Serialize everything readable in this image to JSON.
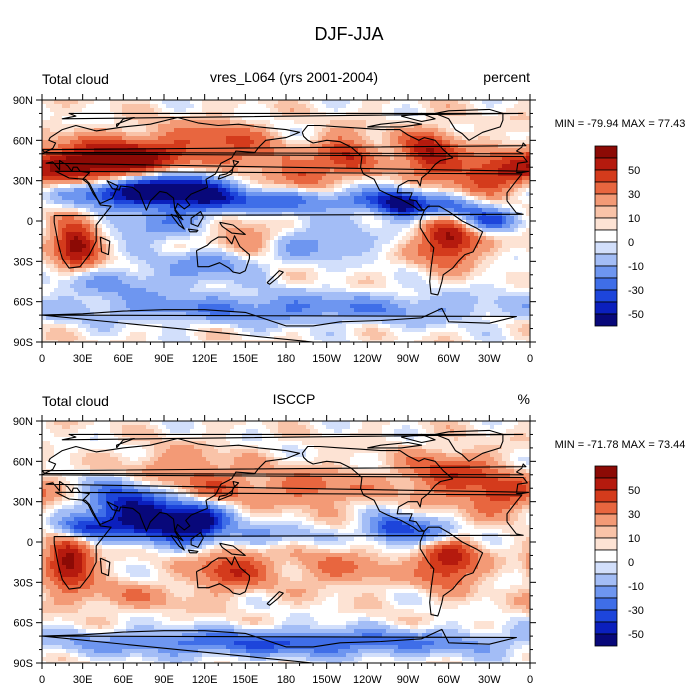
{
  "figure_title": "DJF-JJA",
  "colorbar_labels": [
    "50",
    "30",
    "10",
    "0",
    "-10",
    "-30",
    "-50"
  ],
  "palette": [
    "#08087a",
    "#0b1fbd",
    "#1d45db",
    "#3f6ee8",
    "#6e96f0",
    "#a3bdf6",
    "#d2dffb",
    "#ffffff",
    "#fde3d4",
    "#f9c3a8",
    "#f39a76",
    "#e8663f",
    "#d43b1c",
    "#b51a0e",
    "#8c0a05"
  ],
  "chart_data": [
    {
      "type": "heatmap",
      "panel": "top",
      "title_left": "Total cloud",
      "title_center": "vres_L064 (yrs 2001-2004)",
      "title_right": "percent",
      "stats_text": "MIN = -79.94 MAX =  77.43",
      "min": -79.94,
      "max": 77.43,
      "x_ticks": [
        "0",
        "30E",
        "60E",
        "90E",
        "120E",
        "150E",
        "180",
        "150W",
        "120W",
        "90W",
        "60W",
        "30W",
        "0"
      ],
      "y_ticks": [
        "90N",
        "60N",
        "30N",
        "0",
        "30S",
        "60S",
        "90S"
      ],
      "xlim": [
        0,
        360
      ],
      "ylim": [
        -90,
        90
      ],
      "contour_levels": [
        -60,
        -50,
        -40,
        -30,
        -20,
        -10,
        -5,
        0,
        5,
        10,
        20,
        30,
        40,
        50,
        60
      ],
      "anomalies": [
        {
          "lon": 30,
          "lat": 42,
          "value": 55,
          "sx": 28,
          "sy": 12
        },
        {
          "lon": 75,
          "lat": 45,
          "value": 45,
          "sx": 25,
          "sy": 12
        },
        {
          "lon": 130,
          "lat": 60,
          "value": 30,
          "sx": 25,
          "sy": 10
        },
        {
          "lon": 55,
          "lat": 22,
          "value": -55,
          "sx": 30,
          "sy": 8
        },
        {
          "lon": 90,
          "lat": 25,
          "value": -50,
          "sx": 25,
          "sy": 9
        },
        {
          "lon": 118,
          "lat": 18,
          "value": -40,
          "sx": 20,
          "sy": 10
        },
        {
          "lon": 170,
          "lat": 15,
          "value": -35,
          "sx": 30,
          "sy": 6
        },
        {
          "lon": 240,
          "lat": 15,
          "value": -30,
          "sx": 25,
          "sy": 6
        },
        {
          "lon": 265,
          "lat": 12,
          "value": -55,
          "sx": 12,
          "sy": 7
        },
        {
          "lon": 25,
          "lat": -17,
          "value": 60,
          "sx": 12,
          "sy": 12
        },
        {
          "lon": 300,
          "lat": -15,
          "value": 55,
          "sx": 15,
          "sy": 12
        },
        {
          "lon": 150,
          "lat": -15,
          "value": 30,
          "sx": 20,
          "sy": 10
        },
        {
          "lon": 195,
          "lat": 33,
          "value": 30,
          "sx": 15,
          "sy": 7
        },
        {
          "lon": 225,
          "lat": 50,
          "value": 40,
          "sx": 15,
          "sy": 10
        },
        {
          "lon": 285,
          "lat": 50,
          "value": 50,
          "sx": 15,
          "sy": 12
        },
        {
          "lon": 330,
          "lat": 35,
          "value": 40,
          "sx": 20,
          "sy": 10
        },
        {
          "lon": 80,
          "lat": -5,
          "value": -25,
          "sx": 25,
          "sy": 8
        },
        {
          "lon": 130,
          "lat": -30,
          "value": -30,
          "sx": 25,
          "sy": 8
        },
        {
          "lon": 200,
          "lat": -15,
          "value": -25,
          "sx": 30,
          "sy": 10
        },
        {
          "lon": 300,
          "lat": 10,
          "value": -35,
          "sx": 18,
          "sy": 6
        },
        {
          "lon": 180,
          "lat": -65,
          "value": -30,
          "sx": 120,
          "sy": 8
        },
        {
          "lon": 60,
          "lat": -45,
          "value": -20,
          "sx": 40,
          "sy": 8
        },
        {
          "lon": 330,
          "lat": 0,
          "value": -40,
          "sx": 15,
          "sy": 6
        },
        {
          "lon": 160,
          "lat": 45,
          "value": 20,
          "sx": 20,
          "sy": 8
        }
      ]
    },
    {
      "type": "heatmap",
      "panel": "bottom",
      "title_left": "Total cloud",
      "title_center": "ISCCP",
      "title_right": "%",
      "stats_text": "MIN = -71.78 MAX =  73.44",
      "min": -71.78,
      "max": 73.44,
      "x_ticks": [
        "0",
        "30E",
        "60E",
        "90E",
        "120E",
        "150E",
        "180",
        "150W",
        "120W",
        "90W",
        "60W",
        "30W",
        "0"
      ],
      "y_ticks": [
        "90N",
        "60N",
        "30N",
        "0",
        "30S",
        "60S",
        "90S"
      ],
      "xlim": [
        0,
        360
      ],
      "ylim": [
        -90,
        90
      ],
      "contour_levels": [
        -60,
        -50,
        -40,
        -30,
        -20,
        -10,
        -5,
        0,
        5,
        10,
        20,
        30,
        40,
        50,
        60
      ],
      "anomalies": [
        {
          "lon": 20,
          "lat": -15,
          "value": 60,
          "sx": 12,
          "sy": 12
        },
        {
          "lon": 300,
          "lat": -15,
          "value": 50,
          "sx": 15,
          "sy": 12
        },
        {
          "lon": 140,
          "lat": -20,
          "value": 40,
          "sx": 18,
          "sy": 10
        },
        {
          "lon": 85,
          "lat": 15,
          "value": -60,
          "sx": 25,
          "sy": 10
        },
        {
          "lon": 60,
          "lat": 30,
          "value": -45,
          "sx": 20,
          "sy": 12
        },
        {
          "lon": 115,
          "lat": 15,
          "value": -50,
          "sx": 15,
          "sy": 9
        },
        {
          "lon": 30,
          "lat": 10,
          "value": -40,
          "sx": 15,
          "sy": 6
        },
        {
          "lon": 260,
          "lat": 10,
          "value": -50,
          "sx": 15,
          "sy": 7
        },
        {
          "lon": 200,
          "lat": 40,
          "value": 25,
          "sx": 30,
          "sy": 10
        },
        {
          "lon": 300,
          "lat": 50,
          "value": 35,
          "sx": 25,
          "sy": 12
        },
        {
          "lon": 100,
          "lat": 55,
          "value": 20,
          "sx": 30,
          "sy": 10
        },
        {
          "lon": 180,
          "lat": -75,
          "value": -40,
          "sx": 120,
          "sy": 7
        },
        {
          "lon": 160,
          "lat": 5,
          "value": -20,
          "sx": 30,
          "sy": 6
        },
        {
          "lon": 220,
          "lat": -20,
          "value": 20,
          "sx": 30,
          "sy": 10
        },
        {
          "lon": 340,
          "lat": 35,
          "value": 35,
          "sx": 18,
          "sy": 10
        },
        {
          "lon": 60,
          "lat": -40,
          "value": 15,
          "sx": 40,
          "sy": 8
        },
        {
          "lon": 290,
          "lat": 5,
          "value": -30,
          "sx": 12,
          "sy": 6
        },
        {
          "lon": 130,
          "lat": 40,
          "value": 20,
          "sx": 20,
          "sy": 8
        }
      ]
    }
  ]
}
